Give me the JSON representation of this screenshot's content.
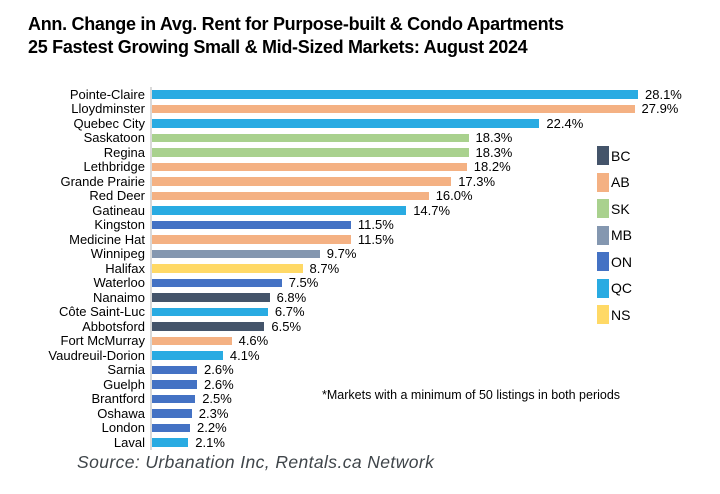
{
  "title": {
    "line1": "Ann. Change in Avg. Rent for Purpose-built & Condo Apartments",
    "line2": "25 Fastest Growing Small & Mid-Sized Markets: August 2024"
  },
  "footnote": "*Markets with a minimum of 50 listings in both periods",
  "source": "Source: Urbanation Inc, Rentals.ca Network",
  "chart_data": {
    "type": "bar",
    "orientation": "horizontal",
    "title": "Ann. Change in Avg. Rent for Purpose-built & Condo Apartments",
    "subtitle": "25 Fastest Growing Small & Mid-Sized Markets: August 2024",
    "value_unit": "%",
    "xlim": [
      0,
      30
    ],
    "grid": false,
    "legend_position": "right",
    "legend": [
      {
        "code": "BC",
        "color": "#44546A"
      },
      {
        "code": "AB",
        "color": "#F4B183"
      },
      {
        "code": "SK",
        "color": "#A9D18E"
      },
      {
        "code": "MB",
        "color": "#8497B0"
      },
      {
        "code": "ON",
        "color": "#4472C4"
      },
      {
        "code": "QC",
        "color": "#29ABE2"
      },
      {
        "code": "NS",
        "color": "#FFD966"
      }
    ],
    "markets": [
      {
        "name": "Pointe-Claire",
        "value": 28.1,
        "label": "28.1%",
        "province": "QC"
      },
      {
        "name": "Lloydminster",
        "value": 27.9,
        "label": "27.9%",
        "province": "AB"
      },
      {
        "name": "Quebec City",
        "value": 22.4,
        "label": "22.4%",
        "province": "QC"
      },
      {
        "name": "Saskatoon",
        "value": 18.3,
        "label": "18.3%",
        "province": "SK"
      },
      {
        "name": "Regina",
        "value": 18.3,
        "label": "18.3%",
        "province": "SK"
      },
      {
        "name": "Lethbridge",
        "value": 18.2,
        "label": "18.2%",
        "province": "AB"
      },
      {
        "name": "Grande Prairie",
        "value": 17.3,
        "label": "17.3%",
        "province": "AB"
      },
      {
        "name": "Red Deer",
        "value": 16.0,
        "label": "16.0%",
        "province": "AB"
      },
      {
        "name": "Gatineau",
        "value": 14.7,
        "label": "14.7%",
        "province": "QC"
      },
      {
        "name": "Kingston",
        "value": 11.5,
        "label": "11.5%",
        "province": "ON"
      },
      {
        "name": "Medicine Hat",
        "value": 11.5,
        "label": "11.5%",
        "province": "AB"
      },
      {
        "name": "Winnipeg",
        "value": 9.7,
        "label": "9.7%",
        "province": "MB"
      },
      {
        "name": "Halifax",
        "value": 8.7,
        "label": "8.7%",
        "province": "NS"
      },
      {
        "name": "Waterloo",
        "value": 7.5,
        "label": "7.5%",
        "province": "ON"
      },
      {
        "name": "Nanaimo",
        "value": 6.8,
        "label": "6.8%",
        "province": "BC"
      },
      {
        "name": "Côte Saint-Luc",
        "value": 6.7,
        "label": "6.7%",
        "province": "QC"
      },
      {
        "name": "Abbotsford",
        "value": 6.5,
        "label": "6.5%",
        "province": "BC"
      },
      {
        "name": "Fort McMurray",
        "value": 4.6,
        "label": "4.6%",
        "province": "AB"
      },
      {
        "name": "Vaudreuil-Dorion",
        "value": 4.1,
        "label": "4.1%",
        "province": "QC"
      },
      {
        "name": "Sarnia",
        "value": 2.6,
        "label": "2.6%",
        "province": "ON"
      },
      {
        "name": "Guelph",
        "value": 2.6,
        "label": "2.6%",
        "province": "ON"
      },
      {
        "name": "Brantford",
        "value": 2.5,
        "label": "2.5%",
        "province": "ON"
      },
      {
        "name": "Oshawa",
        "value": 2.3,
        "label": "2.3%",
        "province": "ON"
      },
      {
        "name": "London",
        "value": 2.2,
        "label": "2.2%",
        "province": "ON"
      },
      {
        "name": "Laval",
        "value": 2.1,
        "label": "2.1%",
        "province": "QC"
      }
    ]
  }
}
